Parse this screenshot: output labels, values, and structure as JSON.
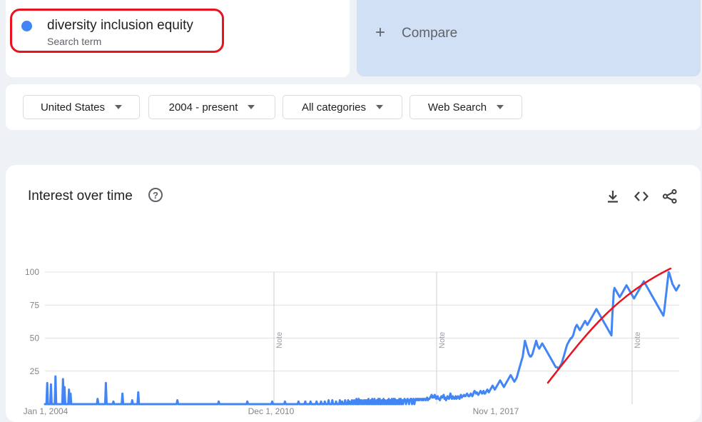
{
  "search_term": {
    "label": "diversity inclusion equity",
    "sub_label": "Search term",
    "color": "#4285f4"
  },
  "compare": {
    "label": "Compare",
    "plus": "+"
  },
  "filters": {
    "region": "United States",
    "time_range": "2004 - present",
    "category": "All categories",
    "search_type": "Web Search"
  },
  "panel": {
    "title": "Interest over time",
    "help_symbol": "?",
    "icons": [
      "download-icon",
      "embed-icon",
      "share-icon"
    ]
  },
  "annotation": {
    "color": "#e8131e"
  },
  "chart_data": {
    "type": "line",
    "title": "Interest over time",
    "y_ticks": [
      25,
      50,
      75,
      100
    ],
    "ylim": [
      0,
      100
    ],
    "x_labels": [
      "Jan 1, 2004",
      "Dec 1, 2010",
      "Nov 1, 2017"
    ],
    "note_label": "Note",
    "grid": true,
    "series": [
      {
        "name": "diversity inclusion equity",
        "color": "#4285f4",
        "values": [
          0,
          0,
          0,
          16,
          0,
          0,
          0,
          0,
          15,
          0,
          0,
          0,
          0,
          0,
          21,
          0,
          0,
          0,
          0,
          0,
          0,
          0,
          0,
          0,
          19,
          0,
          13,
          0,
          0,
          0,
          0,
          0,
          11,
          0,
          8,
          0,
          0,
          0,
          0,
          0,
          0,
          0,
          0,
          0,
          0,
          0,
          0,
          0,
          0,
          0,
          0,
          0,
          0,
          0,
          0,
          0,
          0,
          0,
          0,
          0,
          0,
          0,
          0,
          0,
          0,
          0,
          0,
          0,
          0,
          0,
          4,
          0,
          0,
          0,
          0,
          0,
          0,
          0,
          0,
          0,
          0,
          16,
          0,
          0,
          0,
          0,
          0,
          0,
          0,
          0,
          0,
          2,
          0,
          0,
          0,
          0,
          0,
          0,
          0,
          0,
          0,
          0,
          0,
          8,
          0,
          0,
          0,
          0,
          0,
          0,
          0,
          0,
          0,
          0,
          0,
          0,
          3,
          0,
          0,
          0,
          0,
          0,
          0,
          0,
          9,
          0,
          0,
          0,
          0,
          0,
          0,
          0,
          0,
          0,
          0,
          0,
          0,
          0,
          0,
          0,
          0,
          0,
          0,
          0,
          0,
          0,
          0,
          0,
          0,
          0,
          0,
          0,
          0,
          0,
          0,
          0,
          0,
          0,
          0,
          0,
          0,
          0,
          0,
          0,
          0,
          0,
          0,
          0,
          0,
          0,
          0,
          0,
          0,
          0,
          0,
          0,
          3,
          0,
          0,
          0,
          0,
          0,
          0,
          0,
          0,
          0,
          0,
          0,
          0,
          0,
          0,
          0,
          0,
          0,
          0,
          0,
          0,
          0,
          0,
          0,
          0,
          0,
          0,
          0,
          0,
          0,
          0,
          0,
          0,
          0,
          0,
          0,
          0,
          0,
          0,
          0,
          0,
          0,
          0,
          0,
          0,
          0,
          0,
          0,
          0,
          0,
          0,
          0,
          0,
          0,
          0,
          2,
          0,
          0,
          0,
          0,
          0,
          0,
          0,
          0,
          0,
          0,
          0,
          0,
          0,
          0,
          0,
          0,
          0,
          0,
          0,
          0,
          0,
          0,
          0,
          0,
          0,
          0,
          0,
          0,
          0,
          0,
          0,
          0,
          0,
          0,
          0,
          0,
          0,
          2,
          0,
          0,
          0,
          0,
          0,
          0,
          0,
          0,
          0,
          0,
          0,
          0,
          0,
          0,
          0,
          0,
          0,
          0,
          0,
          0,
          0,
          0,
          0,
          0,
          0,
          0,
          0,
          0,
          0,
          0,
          0,
          0,
          2,
          0,
          0,
          0,
          0,
          0,
          0,
          0,
          0,
          0,
          0,
          0,
          0,
          0,
          0,
          0,
          0,
          2,
          0,
          0,
          0,
          0,
          0,
          0,
          0,
          0,
          0,
          0,
          0,
          0,
          0,
          0,
          0,
          0,
          0,
          2,
          0,
          0,
          0,
          0,
          0,
          0,
          0,
          0,
          2,
          0,
          0,
          0,
          0,
          0,
          0,
          2,
          0,
          0,
          0,
          0,
          0,
          0,
          0,
          2,
          0,
          0,
          0,
          0,
          0,
          2,
          0,
          0,
          0,
          0,
          2,
          0,
          0,
          0,
          0,
          3,
          0,
          0,
          0,
          0,
          3,
          0,
          0,
          0,
          0,
          2,
          0,
          0,
          0,
          0,
          3,
          0,
          0,
          2,
          0,
          0,
          0,
          3,
          0,
          0,
          0,
          3,
          0,
          2,
          0,
          0,
          3,
          0,
          0,
          3,
          0,
          0,
          4,
          0,
          0,
          4,
          0,
          3,
          0,
          3,
          0,
          0,
          3,
          0,
          3,
          0,
          3,
          0,
          4,
          0,
          0,
          3,
          0,
          4,
          0,
          0,
          4,
          0,
          0,
          3,
          0,
          4,
          0,
          4,
          0,
          0,
          3,
          0,
          4,
          0,
          3,
          0,
          0,
          3,
          0,
          4,
          0,
          3,
          0,
          4,
          0,
          4,
          0,
          4,
          0,
          3,
          0,
          3,
          0,
          4,
          0,
          4,
          0,
          3,
          0,
          3,
          4,
          3,
          0,
          3,
          4,
          3,
          0,
          3,
          4,
          4,
          0,
          3,
          4,
          0,
          3,
          4,
          3,
          4,
          3,
          4,
          3,
          4,
          4,
          3,
          4,
          3,
          4,
          4,
          3,
          4,
          5,
          3,
          4,
          4,
          5,
          6,
          7,
          5,
          6,
          5,
          7,
          6,
          4,
          5,
          6,
          4,
          4,
          3,
          5,
          6,
          5,
          6,
          7,
          4,
          5,
          3,
          4,
          6,
          5,
          4,
          6,
          8,
          5,
          4,
          6,
          5,
          4,
          5,
          6,
          4,
          5,
          6,
          5,
          4,
          6,
          7,
          5,
          6,
          6,
          7,
          6,
          6,
          7,
          8,
          7,
          6,
          6,
          7,
          8,
          7,
          6,
          7,
          9,
          10,
          9,
          8,
          9,
          8,
          7,
          8,
          9,
          10,
          9,
          8,
          9,
          10,
          8,
          8,
          9,
          10,
          11,
          10,
          9,
          10,
          11,
          12,
          13,
          14,
          13,
          12,
          11,
          12,
          13,
          14,
          15,
          16,
          17,
          18,
          17,
          16,
          15,
          14,
          13,
          14,
          15,
          16,
          17,
          18,
          19,
          20,
          21,
          22,
          21,
          20,
          19,
          18,
          17,
          18,
          19,
          20,
          22,
          24,
          26,
          28,
          30,
          32,
          34,
          36,
          40,
          44,
          48,
          46,
          44,
          42,
          40,
          38,
          37,
          36,
          36,
          37,
          38,
          40,
          42,
          44,
          46,
          48,
          46,
          44,
          43,
          42,
          43,
          44,
          45,
          46,
          45,
          44,
          43,
          42,
          41,
          40,
          39,
          38,
          37,
          36,
          35,
          34,
          33,
          32,
          31,
          30,
          29,
          28,
          28,
          28,
          27,
          27,
          28,
          29,
          30,
          31,
          33,
          35,
          37,
          39,
          41,
          43,
          45,
          46,
          47,
          48,
          49,
          50,
          50,
          51,
          52,
          54,
          56,
          58,
          59,
          60,
          59,
          58,
          57,
          56,
          57,
          58,
          59,
          60,
          61,
          62,
          63,
          62,
          61,
          60,
          61,
          62,
          63,
          64,
          65,
          66,
          67,
          68,
          69,
          70,
          71,
          72,
          71,
          70,
          69,
          68,
          67,
          66,
          65,
          64,
          63,
          62,
          61,
          60,
          59,
          58,
          57,
          56,
          55,
          54,
          53,
          52,
          65,
          75,
          85,
          88,
          87,
          86,
          85,
          84,
          83,
          82,
          81,
          82,
          83,
          84,
          85,
          86,
          87,
          88,
          89,
          90,
          89,
          88,
          87,
          86,
          85,
          84,
          83,
          82,
          81,
          80,
          81,
          82,
          83,
          84,
          85,
          86,
          87,
          88,
          89,
          90,
          91,
          92,
          93,
          92,
          91,
          90,
          89,
          88,
          87,
          86,
          85,
          84,
          83,
          82,
          81,
          80,
          79,
          78,
          77,
          76,
          75,
          74,
          73,
          72,
          71,
          70,
          69,
          68,
          67,
          70,
          75,
          80,
          85,
          90,
          95,
          100,
          99,
          97,
          95,
          93,
          91,
          90,
          89,
          88,
          87,
          86,
          87,
          88,
          89,
          90
        ]
      }
    ]
  }
}
